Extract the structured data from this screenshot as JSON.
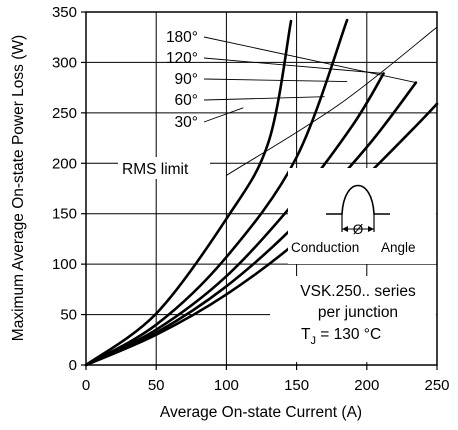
{
  "chart_data": {
    "type": "line",
    "title": "",
    "xlabel": "Average On-state Current (A)",
    "ylabel": "Maximum Average On-state Power Loss (W)",
    "xlim": [
      0,
      250
    ],
    "ylim": [
      0,
      350
    ],
    "xticks": [
      "0",
      "50",
      "100",
      "150",
      "200",
      "250"
    ],
    "yticks": [
      "0",
      "50",
      "100",
      "150",
      "200",
      "250",
      "300",
      "350"
    ],
    "grid": true,
    "series": [
      {
        "name": "180°",
        "points": [
          [
            0,
            0
          ],
          [
            50,
            30
          ],
          [
            100,
            70
          ],
          [
            150,
            122
          ],
          [
            200,
            188
          ],
          [
            235,
            237
          ],
          [
            250,
            259
          ]
        ]
      },
      {
        "name": "120°",
        "points": [
          [
            0,
            0
          ],
          [
            50,
            32
          ],
          [
            100,
            78
          ],
          [
            150,
            140
          ],
          [
            200,
            216
          ],
          [
            235,
            280
          ]
        ]
      },
      {
        "name": "90°",
        "points": [
          [
            0,
            0
          ],
          [
            50,
            35
          ],
          [
            100,
            88
          ],
          [
            150,
            164
          ],
          [
            190,
            238
          ],
          [
            212,
            289
          ]
        ]
      },
      {
        "name": "60°",
        "points": [
          [
            0,
            0
          ],
          [
            50,
            40
          ],
          [
            100,
            107
          ],
          [
            150,
            206
          ],
          [
            186,
            342
          ]
        ]
      },
      {
        "name": "30°",
        "points": [
          [
            0,
            0
          ],
          [
            50,
            51
          ],
          [
            100,
            145
          ],
          [
            130,
            221
          ],
          [
            146,
            341
          ]
        ]
      }
    ],
    "rms_limit": {
      "label": "RMS limit",
      "points": [
        [
          100,
          188
        ],
        [
          180,
          258
        ],
        [
          250,
          335
        ]
      ]
    },
    "annotations": {
      "inset_label_conduction": "Conduction",
      "inset_label_angle": "Angle",
      "inset_symbol": "Ø",
      "device_line1": "VSK.250.. series",
      "device_line2": "per junction",
      "tj_prefix": "T",
      "tj_sub": "J",
      "tj_value": " = 130 °C"
    }
  }
}
